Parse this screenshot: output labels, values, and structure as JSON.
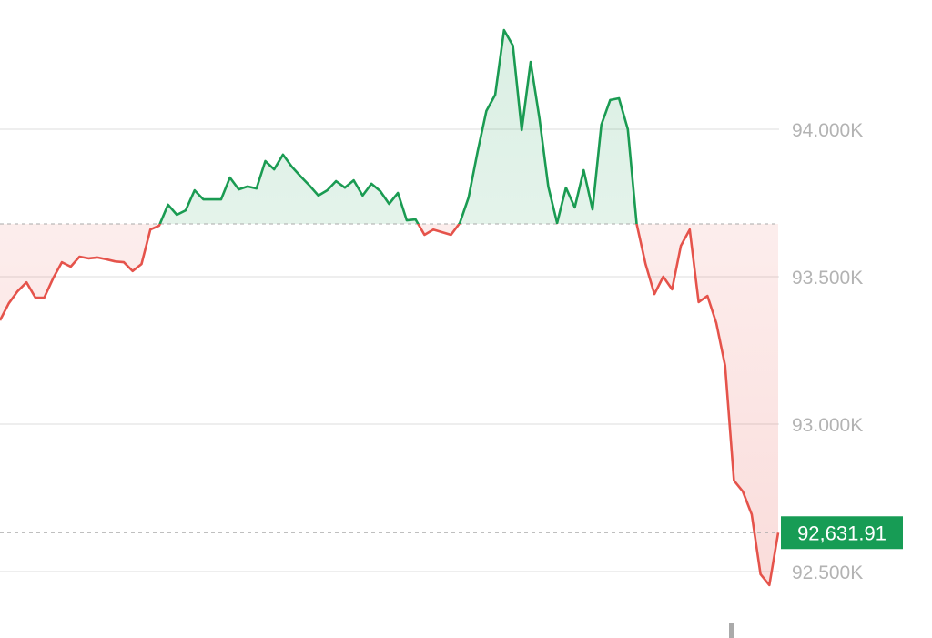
{
  "chart_data": {
    "type": "line",
    "title": "",
    "xlabel": "",
    "ylabel": "",
    "ylim": [
      92380,
      94430
    ],
    "grid": true,
    "y_ticks": [
      {
        "value": 94000,
        "label": "94.000K"
      },
      {
        "value": 93500,
        "label": "93.500K"
      },
      {
        "value": 93000,
        "label": "93.000K"
      },
      {
        "value": 92500,
        "label": "92.500K"
      }
    ],
    "baseline": 93679,
    "current_price": 92631.91,
    "current_price_label": "92,631.91",
    "colors": {
      "up": "#1a9b52",
      "down": "#e5534b",
      "badge": "#179c55",
      "grid": "#dddddd",
      "tick_text": "#b3b3b3"
    },
    "values": [
      93352,
      93410,
      93451,
      93481,
      93429,
      93429,
      93494,
      93549,
      93534,
      93568,
      93562,
      93565,
      93559,
      93552,
      93549,
      93519,
      93543,
      93660,
      93673,
      93744,
      93710,
      93725,
      93793,
      93762,
      93762,
      93762,
      93836,
      93796,
      93806,
      93799,
      93892,
      93864,
      93914,
      93873,
      93840,
      93809,
      93775,
      93793,
      93824,
      93802,
      93827,
      93775,
      93815,
      93790,
      93747,
      93784,
      93691,
      93694,
      93642,
      93660,
      93651,
      93642,
      93682,
      93769,
      93923,
      94062,
      94117,
      94336,
      94284,
      93997,
      94228,
      94037,
      93806,
      93682,
      93802,
      93735,
      93861,
      93728,
      94015,
      94099,
      94105,
      94000,
      93679,
      93543,
      93441,
      93500,
      93457,
      93605,
      93660,
      93414,
      93435,
      93343,
      93198,
      92809,
      92772,
      92694,
      92491,
      92454,
      92631.91
    ]
  }
}
